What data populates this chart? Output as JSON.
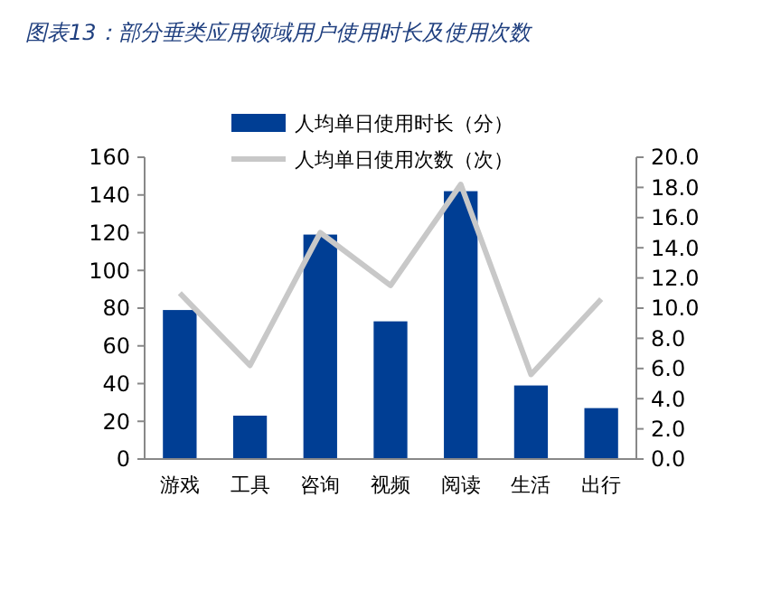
{
  "chart_data": {
    "type": "bar",
    "title": "图表13：部分垂类应用领域用户使用时长及使用次数",
    "categories": [
      "游戏",
      "工具",
      "咨询",
      "视频",
      "阅读",
      "生活",
      "出行"
    ],
    "series": [
      {
        "name": "人均单日使用时长（分）",
        "color": "#003e94",
        "values": [
          79,
          23,
          119,
          73,
          142,
          39,
          27
        ]
      },
      {
        "name": "人均单日使用次数（次）",
        "type": "line",
        "axis": "y2",
        "color": "#c8c8c8",
        "values": [
          11.0,
          6.2,
          15.0,
          11.5,
          18.2,
          5.6,
          10.6
        ]
      }
    ],
    "ylim": [
      0,
      160
    ],
    "yticks": [
      0,
      20,
      40,
      60,
      80,
      100,
      120,
      140,
      160
    ],
    "y2lim": [
      0,
      20
    ],
    "y2ticks": [
      {
        "value": 0,
        "label": "0.0"
      },
      {
        "value": 2,
        "label": "2.0"
      },
      {
        "value": 4,
        "label": "4.0"
      },
      {
        "value": 6,
        "label": "6.0"
      },
      {
        "value": 8,
        "label": "8.0"
      },
      {
        "value": 10,
        "label": "10.0"
      },
      {
        "value": 12,
        "label": "12.0"
      },
      {
        "value": 14,
        "label": "14.0"
      },
      {
        "value": 16,
        "label": "16.0"
      },
      {
        "value": 18,
        "label": "18.0"
      },
      {
        "value": 20,
        "label": "20.0"
      }
    ],
    "legend": "top",
    "grid": false
  }
}
